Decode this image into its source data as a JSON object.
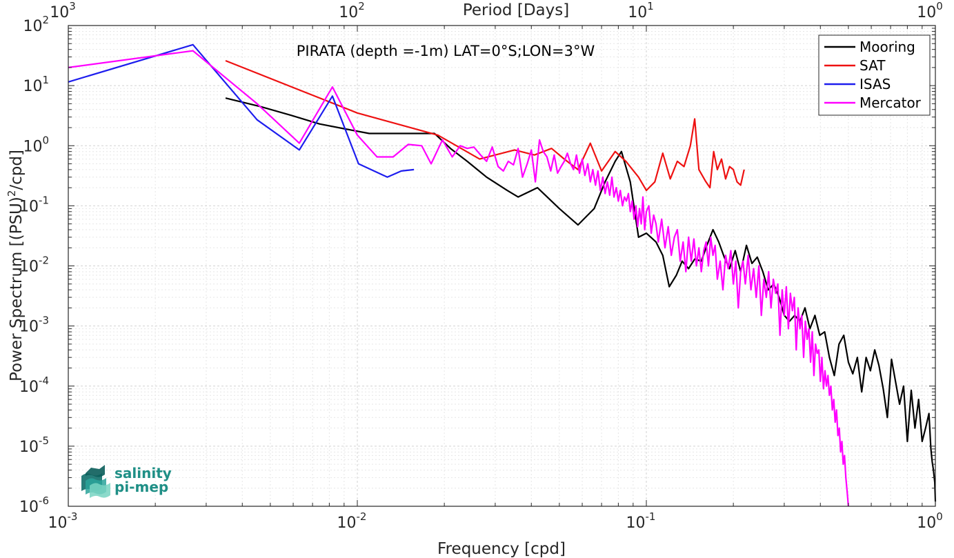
{
  "chart_data": {
    "type": "line",
    "title": "PIRATA (depth =-1m) LAT=0°S;LON=3°W",
    "xlabel": "Frequency [cpd]",
    "ylabel_main": "Power Spectrum [(PSU)",
    "ylabel_sup": "2",
    "ylabel_tail": "/cpd]",
    "top_xlabel": "Period [Days]",
    "xscale": "log",
    "yscale": "log",
    "xlim": [
      0.001,
      1
    ],
    "ylim": [
      1e-06,
      100
    ],
    "grid": true,
    "legend_position": "top-right",
    "x_ticks": [
      {
        "value": 0.001,
        "base": "10",
        "exp": "-3"
      },
      {
        "value": 0.01,
        "base": "10",
        "exp": "-2"
      },
      {
        "value": 0.1,
        "base": "10",
        "exp": "-1"
      },
      {
        "value": 1,
        "base": "10",
        "exp": "0"
      }
    ],
    "y_ticks": [
      {
        "value": 1e-06,
        "base": "10",
        "exp": "-6"
      },
      {
        "value": 1e-05,
        "base": "10",
        "exp": "-5"
      },
      {
        "value": 0.0001,
        "base": "10",
        "exp": "-4"
      },
      {
        "value": 0.001,
        "base": "10",
        "exp": "-3"
      },
      {
        "value": 0.01,
        "base": "10",
        "exp": "-2"
      },
      {
        "value": 0.1,
        "base": "10",
        "exp": "-1"
      },
      {
        "value": 1,
        "base": "10",
        "exp": "0"
      },
      {
        "value": 10,
        "base": "10",
        "exp": "1"
      },
      {
        "value": 100,
        "base": "10",
        "exp": "2"
      }
    ],
    "top_ticks": [
      {
        "value": 0.001,
        "base": "10",
        "exp": "3"
      },
      {
        "value": 0.01,
        "base": "10",
        "exp": "2"
      },
      {
        "value": 0.1,
        "base": "10",
        "exp": "1"
      },
      {
        "value": 1,
        "base": "10",
        "exp": "0"
      }
    ],
    "series": [
      {
        "name": "Mooring",
        "color": "#000000",
        "x": [
          0.0035,
          0.0046,
          0.0059,
          0.0074,
          0.0091,
          0.011,
          0.013,
          0.0155,
          0.0185,
          0.021,
          0.024,
          0.028,
          0.033,
          0.036,
          0.042,
          0.05,
          0.058,
          0.066,
          0.072,
          0.078,
          0.082,
          0.088,
          0.094,
          0.1,
          0.108,
          0.114,
          0.12,
          0.127,
          0.133,
          0.14,
          0.147,
          0.155,
          0.162,
          0.17,
          0.178,
          0.186,
          0.194,
          0.203,
          0.212,
          0.222,
          0.232,
          0.242,
          0.253,
          0.264,
          0.276,
          0.288,
          0.3,
          0.313,
          0.326,
          0.34,
          0.354,
          0.368,
          0.383,
          0.398,
          0.414,
          0.43,
          0.447,
          0.464,
          0.482,
          0.5,
          0.518,
          0.537,
          0.556,
          0.576,
          0.596,
          0.617,
          0.638,
          0.66,
          0.682,
          0.705,
          0.728,
          0.752,
          0.776,
          0.8,
          0.825,
          0.85,
          0.875,
          0.9,
          0.925,
          0.95,
          0.965,
          0.975,
          0.985,
          0.995,
          1.0
        ],
        "y": [
          6.2,
          4.5,
          3.2,
          2.3,
          1.9,
          1.6,
          1.6,
          1.6,
          1.6,
          0.9,
          0.55,
          0.3,
          0.18,
          0.14,
          0.2,
          0.09,
          0.048,
          0.09,
          0.25,
          0.55,
          0.8,
          0.25,
          0.03,
          0.035,
          0.025,
          0.015,
          0.0045,
          0.007,
          0.012,
          0.009,
          0.013,
          0.012,
          0.022,
          0.04,
          0.025,
          0.014,
          0.009,
          0.018,
          0.008,
          0.022,
          0.011,
          0.014,
          0.008,
          0.004,
          0.005,
          0.003,
          0.0015,
          0.0012,
          0.0015,
          0.0012,
          0.002,
          0.0009,
          0.0015,
          0.0007,
          0.0008,
          0.0003,
          0.00015,
          0.0005,
          0.0007,
          0.00025,
          0.00016,
          0.0003,
          8e-05,
          0.0003,
          0.00018,
          0.0004,
          0.00022,
          9e-05,
          3e-05,
          0.00028,
          0.00012,
          5e-05,
          0.0001,
          1.2e-05,
          8.5e-05,
          2e-05,
          6e-05,
          1.2e-05,
          2e-05,
          3.5e-05,
          9e-06,
          5.5e-06,
          4e-06,
          2.5e-06,
          1.2e-06
        ]
      },
      {
        "name": "SAT",
        "color": "#ee1111",
        "x": [
          0.0035,
          0.01,
          0.019,
          0.0265,
          0.035,
          0.041,
          0.047,
          0.052,
          0.058,
          0.064,
          0.07,
          0.078,
          0.085,
          0.094,
          0.1,
          0.107,
          0.114,
          0.121,
          0.128,
          0.135,
          0.142,
          0.147,
          0.152,
          0.16,
          0.166,
          0.171,
          0.176,
          0.182,
          0.188,
          0.194,
          0.2,
          0.206,
          0.212,
          0.218
        ],
        "y": [
          26,
          3.5,
          1.5,
          0.6,
          0.85,
          0.7,
          0.9,
          0.6,
          0.4,
          1.1,
          0.38,
          0.8,
          0.55,
          0.3,
          0.18,
          0.25,
          0.75,
          0.28,
          0.55,
          0.45,
          1.0,
          2.8,
          0.4,
          0.26,
          0.2,
          0.8,
          0.4,
          0.6,
          0.28,
          0.45,
          0.4,
          0.25,
          0.22,
          0.4
        ]
      },
      {
        "name": "ISAS",
        "color": "#1d1dee",
        "x": [
          0.001,
          0.0027,
          0.0045,
          0.0063,
          0.0082,
          0.0101,
          0.0127,
          0.0142,
          0.0157
        ],
        "y": [
          11.5,
          48,
          2.7,
          0.85,
          6.7,
          0.5,
          0.3,
          0.38,
          0.4
        ]
      },
      {
        "name": "Mercator",
        "color": "#ff00ff",
        "x": [
          0.001,
          0.0027,
          0.0045,
          0.0063,
          0.0082,
          0.01,
          0.0117,
          0.0133,
          0.015,
          0.0167,
          0.018,
          0.0197,
          0.0213,
          0.0227,
          0.024,
          0.0253,
          0.0267,
          0.028,
          0.0293,
          0.0307,
          0.032,
          0.0333,
          0.0347,
          0.036,
          0.0373,
          0.0387,
          0.04,
          0.0413,
          0.0427,
          0.044,
          0.0453,
          0.0467,
          0.048,
          0.0493,
          0.0507,
          0.052,
          0.0533,
          0.0547,
          0.056,
          0.0573,
          0.0587,
          0.06,
          0.0613,
          0.0627,
          0.064,
          0.0653,
          0.0667,
          0.068,
          0.0693,
          0.0707,
          0.072,
          0.0733,
          0.0747,
          0.076,
          0.0773,
          0.0787,
          0.08,
          0.0813,
          0.0827,
          0.084,
          0.0853,
          0.0867,
          0.088,
          0.0893,
          0.0907,
          0.092,
          0.0933,
          0.0947,
          0.096,
          0.0973,
          0.0987,
          0.1,
          0.102,
          0.104,
          0.106,
          0.108,
          0.11,
          0.113,
          0.116,
          0.119,
          0.122,
          0.125,
          0.128,
          0.131,
          0.134,
          0.137,
          0.14,
          0.143,
          0.146,
          0.149,
          0.152,
          0.155,
          0.158,
          0.161,
          0.164,
          0.167,
          0.17,
          0.173,
          0.176,
          0.18,
          0.184,
          0.188,
          0.192,
          0.196,
          0.2,
          0.204,
          0.208,
          0.212,
          0.216,
          0.22,
          0.225,
          0.23,
          0.235,
          0.24,
          0.245,
          0.25,
          0.255,
          0.26,
          0.265,
          0.27,
          0.275,
          0.28,
          0.285,
          0.29,
          0.295,
          0.3,
          0.305,
          0.31,
          0.315,
          0.32,
          0.325,
          0.33,
          0.335,
          0.34,
          0.345,
          0.35,
          0.355,
          0.36,
          0.365,
          0.37,
          0.375,
          0.38,
          0.385,
          0.39,
          0.395,
          0.4,
          0.405,
          0.41,
          0.415,
          0.42,
          0.425,
          0.43,
          0.435,
          0.44,
          0.445,
          0.45,
          0.455,
          0.46,
          0.465,
          0.47,
          0.475,
          0.48,
          0.485,
          0.49,
          0.495,
          0.5
        ],
        "y": [
          20,
          38,
          5,
          1.1,
          9.5,
          1.5,
          0.65,
          0.65,
          1.05,
          1.0,
          0.5,
          1.25,
          0.65,
          1.0,
          0.9,
          0.95,
          0.7,
          0.55,
          0.95,
          0.45,
          0.38,
          0.55,
          0.48,
          0.9,
          0.3,
          0.5,
          0.85,
          0.25,
          1.25,
          0.8,
          0.65,
          0.38,
          0.7,
          0.35,
          0.45,
          0.55,
          0.75,
          0.5,
          0.4,
          0.7,
          0.35,
          0.6,
          0.32,
          0.5,
          0.25,
          0.4,
          0.22,
          0.38,
          0.18,
          0.3,
          0.16,
          0.25,
          0.15,
          0.3,
          0.14,
          0.2,
          0.12,
          0.18,
          0.1,
          0.14,
          0.12,
          0.16,
          0.08,
          0.12,
          0.06,
          0.1,
          0.045,
          0.09,
          0.05,
          0.14,
          0.04,
          0.08,
          0.1,
          0.035,
          0.07,
          0.05,
          0.025,
          0.06,
          0.02,
          0.045,
          0.015,
          0.03,
          0.04,
          0.012,
          0.025,
          0.008,
          0.03,
          0.012,
          0.028,
          0.01,
          0.02,
          0.008,
          0.018,
          0.025,
          0.01,
          0.03,
          0.015,
          0.022,
          0.006,
          0.012,
          0.004,
          0.015,
          0.009,
          0.018,
          0.005,
          0.012,
          0.002,
          0.008,
          0.012,
          0.005,
          0.015,
          0.004,
          0.009,
          0.003,
          0.01,
          0.0015,
          0.006,
          0.003,
          0.008,
          0.002,
          0.006,
          0.0035,
          0.005,
          0.0007,
          0.004,
          0.0015,
          0.0045,
          0.0009,
          0.0035,
          0.0018,
          0.003,
          0.0004,
          0.002,
          0.0009,
          0.0015,
          0.0003,
          0.0012,
          0.0006,
          0.0009,
          0.00025,
          0.0008,
          0.00015,
          0.0005,
          0.00035,
          0.0004,
          0.00012,
          0.0003,
          9e-05,
          0.00018,
          0.0001,
          0.00015,
          7e-05,
          0.0001,
          4e-05,
          6e-05,
          2.5e-05,
          4e-05,
          1.5e-05,
          2e-05,
          8e-06,
          1.2e-05,
          5e-06,
          7e-06,
          3e-06,
          1.8e-06,
          1e-06
        ]
      }
    ]
  },
  "logo": {
    "line1": "salinity",
    "line2": "pi-mep",
    "color": "#1f8f86"
  }
}
